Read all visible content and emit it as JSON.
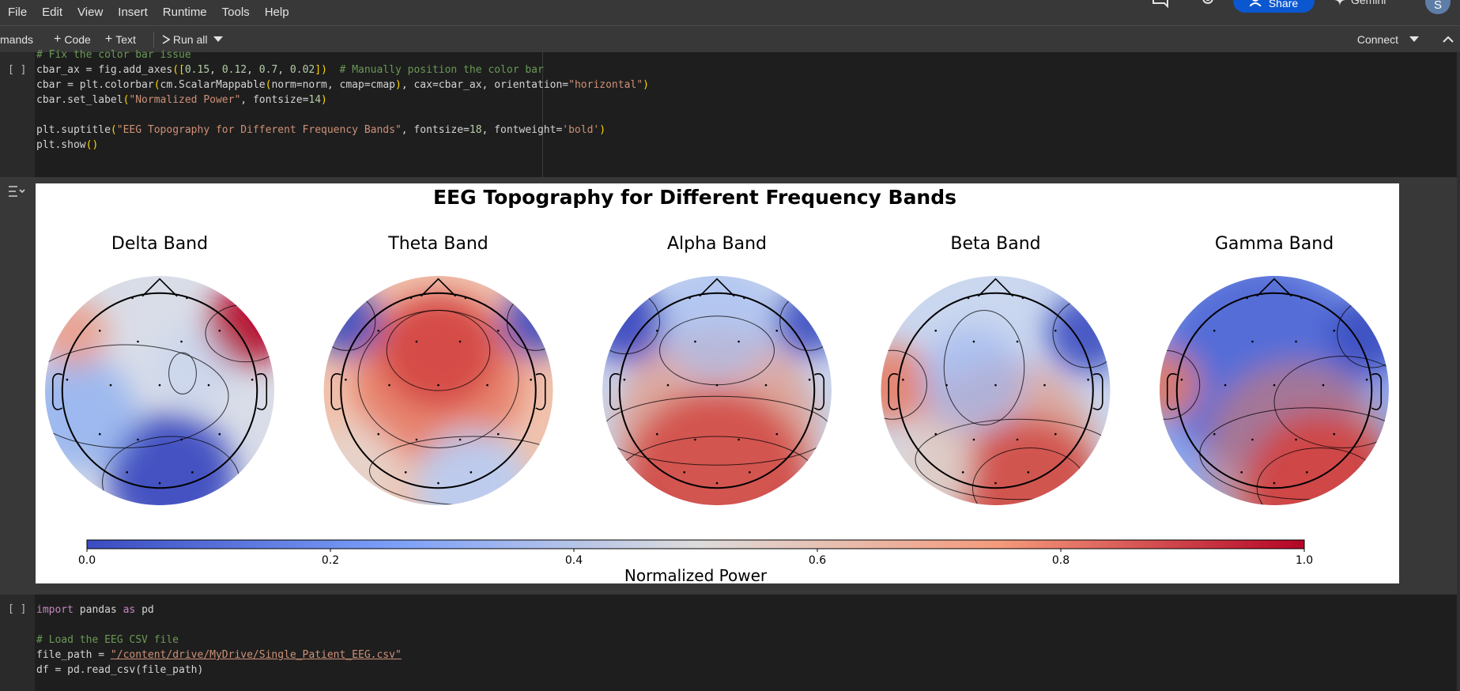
{
  "menu": {
    "items": [
      "File",
      "Edit",
      "View",
      "Insert",
      "Runtime",
      "Tools",
      "Help"
    ]
  },
  "header": {
    "share_label": "Share",
    "gemini_label": "Gemini",
    "avatar_letter": "S"
  },
  "toolbar": {
    "commands_label": "mands",
    "add_code_label": "Code",
    "add_text_label": "Text",
    "run_all_label": "Run all",
    "connect_label": "Connect"
  },
  "cells": [
    {
      "run_indicator": "[ ]",
      "lines": [
        "# Fix the color bar issue",
        "cbar_ax = fig.add_axes([0.15, 0.12, 0.7, 0.02])  # Manually position the color bar",
        "cbar = plt.colorbar(cm.ScalarMappable(norm=norm, cmap=cmap), cax=cbar_ax, orientation=\"horizontal\")",
        "cbar.set_label(\"Normalized Power\", fontsize=14)",
        "",
        "plt.suptitle(\"EEG Topography for Different Frequency Bands\", fontsize=18, fontweight='bold')",
        "plt.show()"
      ]
    },
    {
      "run_indicator": "[ ]",
      "lines": [
        "import pandas as pd",
        "",
        "# Load the EEG CSV file",
        "file_path = \"/content/drive/MyDrive/Single_Patient_EEG.csv\"",
        "df = pd.read_csv(file_path)"
      ]
    }
  ],
  "chart_data": {
    "type": "heatmap",
    "title": "EEG Topography for Different Frequency Bands",
    "panels": [
      {
        "title": "Delta Band",
        "pattern": "delta"
      },
      {
        "title": "Theta Band",
        "pattern": "theta"
      },
      {
        "title": "Alpha Band",
        "pattern": "alpha"
      },
      {
        "title": "Beta Band",
        "pattern": "beta"
      },
      {
        "title": "Gamma Band",
        "pattern": "gamma"
      }
    ],
    "colorbar": {
      "label": "Normalized Power",
      "ticks": [
        "0.0",
        "0.2",
        "0.4",
        "0.6",
        "0.8",
        "1.0"
      ],
      "range": [
        0,
        1
      ],
      "colormap": "coolwarm",
      "orientation": "horizontal"
    },
    "colors": {
      "low": "#3b4cc0",
      "mid": "#dddddd",
      "high": "#b40426"
    }
  }
}
